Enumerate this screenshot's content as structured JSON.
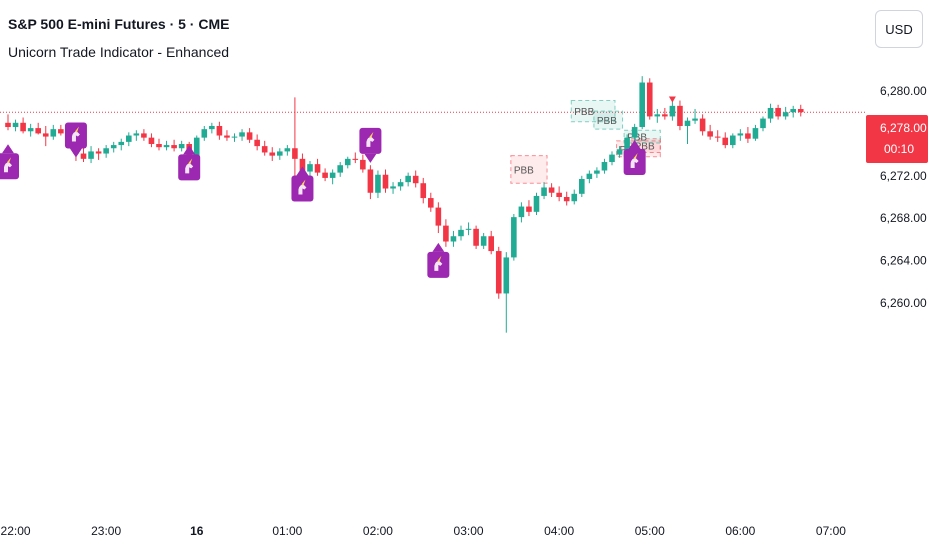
{
  "header": {
    "title": "S&P 500 E-mini Futures · 5 · CME",
    "indicator": "Unicorn Trade Indicator - Enhanced",
    "currency": "USD"
  },
  "price_tag": {
    "price": "6,278.00",
    "countdown": "00:10"
  },
  "colors": {
    "up": "#22ab94",
    "down": "#f23645",
    "marker": "#9c27b0",
    "price_line": "#f23645",
    "axis_text": "#131722"
  },
  "icons": {
    "marker": "unicorn-icon"
  },
  "chart_data": {
    "type": "candlestick",
    "y_ticks": [
      "6,280.00",
      "6,276.00",
      "6,272.00",
      "6,268.00",
      "6,264.00",
      "6,260.00"
    ],
    "y_tick_values": [
      6280,
      6276,
      6272,
      6268,
      6264,
      6260
    ],
    "ylim": [
      6256.3,
      6283.0
    ],
    "x_ticks": [
      {
        "label": "22:00",
        "bar": 1,
        "bold": false
      },
      {
        "label": "23:00",
        "bar": 13,
        "bold": false
      },
      {
        "label": "16",
        "bar": 25,
        "bold": true
      },
      {
        "label": "01:00",
        "bar": 37,
        "bold": false
      },
      {
        "label": "02:00",
        "bar": 49,
        "bold": false
      },
      {
        "label": "03:00",
        "bar": 61,
        "bold": false
      },
      {
        "label": "04:00",
        "bar": 73,
        "bold": false
      },
      {
        "label": "05:00",
        "bar": 85,
        "bold": false
      },
      {
        "label": "06:00",
        "bar": 97,
        "bold": false
      },
      {
        "label": "07:00",
        "bar": 109,
        "bold": false
      }
    ],
    "current_price": 6278.0,
    "candles": [
      [
        6277.0,
        6277.8,
        6276.3,
        6276.6
      ],
      [
        6276.6,
        6277.3,
        6276.2,
        6277.0
      ],
      [
        6277.0,
        6277.5,
        6276.0,
        6276.2
      ],
      [
        6276.2,
        6276.9,
        6275.7,
        6276.5
      ],
      [
        6276.5,
        6277.0,
        6275.9,
        6276.0
      ],
      [
        6276.0,
        6276.7,
        6274.8,
        6275.7
      ],
      [
        6275.7,
        6276.8,
        6275.4,
        6276.4
      ],
      [
        6276.4,
        6276.8,
        6275.8,
        6276.0
      ],
      [
        6276.0,
        6276.5,
        6274.9,
        6275.2
      ],
      [
        6275.2,
        6275.7,
        6273.4,
        6274.1
      ],
      [
        6274.1,
        6274.6,
        6273.3,
        6273.6
      ],
      [
        6273.6,
        6274.8,
        6273.2,
        6274.3
      ],
      [
        6274.3,
        6274.6,
        6273.5,
        6274.1
      ],
      [
        6274.1,
        6274.9,
        6273.7,
        6274.6
      ],
      [
        6274.6,
        6275.2,
        6274.2,
        6274.9
      ],
      [
        6274.9,
        6275.5,
        6274.4,
        6275.2
      ],
      [
        6275.2,
        6276.1,
        6274.8,
        6275.8
      ],
      [
        6275.8,
        6276.3,
        6275.3,
        6276.0
      ],
      [
        6276.0,
        6276.4,
        6275.3,
        6275.6
      ],
      [
        6275.6,
        6276.0,
        6274.7,
        6275.0
      ],
      [
        6275.0,
        6275.5,
        6274.4,
        6274.7
      ],
      [
        6274.7,
        6275.3,
        6274.4,
        6274.9
      ],
      [
        6274.9,
        6275.4,
        6274.3,
        6274.6
      ],
      [
        6274.6,
        6275.3,
        6274.3,
        6275.0
      ],
      [
        6275.0,
        6275.2,
        6272.8,
        6273.1
      ],
      [
        6273.1,
        6275.8,
        6272.9,
        6275.6
      ],
      [
        6275.6,
        6276.7,
        6275.3,
        6276.4
      ],
      [
        6276.4,
        6277.0,
        6276.0,
        6276.7
      ],
      [
        6276.7,
        6277.1,
        6275.4,
        6275.8
      ],
      [
        6275.8,
        6276.3,
        6275.3,
        6275.6
      ],
      [
        6275.6,
        6276.0,
        6275.2,
        6275.7
      ],
      [
        6275.7,
        6276.4,
        6275.3,
        6276.1
      ],
      [
        6276.1,
        6276.5,
        6275.1,
        6275.4
      ],
      [
        6275.4,
        6275.9,
        6274.4,
        6274.8
      ],
      [
        6274.8,
        6275.3,
        6273.9,
        6274.2
      ],
      [
        6274.2,
        6274.7,
        6273.4,
        6273.9
      ],
      [
        6273.9,
        6274.6,
        6273.5,
        6274.3
      ],
      [
        6274.3,
        6274.9,
        6273.9,
        6274.6
      ],
      [
        6274.6,
        6279.4,
        6271.2,
        6273.6
      ],
      [
        6273.6,
        6274.1,
        6271.8,
        6272.4
      ],
      [
        6272.4,
        6273.4,
        6272.0,
        6273.1
      ],
      [
        6273.1,
        6273.6,
        6272.0,
        6272.3
      ],
      [
        6272.3,
        6272.7,
        6271.5,
        6271.8
      ],
      [
        6271.8,
        6272.6,
        6271.2,
        6272.3
      ],
      [
        6272.3,
        6273.3,
        6271.9,
        6273.0
      ],
      [
        6273.0,
        6273.8,
        6272.7,
        6273.6
      ],
      [
        6273.6,
        6274.2,
        6273.2,
        6273.5
      ],
      [
        6273.5,
        6274.0,
        6272.3,
        6272.6
      ],
      [
        6272.6,
        6273.0,
        6269.8,
        6270.4
      ],
      [
        6270.4,
        6272.5,
        6269.9,
        6272.1
      ],
      [
        6272.1,
        6272.6,
        6270.4,
        6270.8
      ],
      [
        6270.8,
        6271.4,
        6270.3,
        6271.0
      ],
      [
        6271.0,
        6271.7,
        6270.6,
        6271.4
      ],
      [
        6271.4,
        6272.3,
        6271.0,
        6272.0
      ],
      [
        6272.0,
        6272.5,
        6270.9,
        6271.3
      ],
      [
        6271.3,
        6271.8,
        6269.4,
        6269.9
      ],
      [
        6269.9,
        6270.4,
        6268.6,
        6269.0
      ],
      [
        6269.0,
        6269.5,
        6266.6,
        6267.3
      ],
      [
        6267.3,
        6267.9,
        6265.3,
        6265.8
      ],
      [
        6265.8,
        6266.8,
        6265.3,
        6266.3
      ],
      [
        6266.3,
        6267.3,
        6265.9,
        6266.9
      ],
      [
        6266.9,
        6267.6,
        6266.4,
        6267.0
      ],
      [
        6267.0,
        6267.3,
        6265.1,
        6265.4
      ],
      [
        6265.4,
        6266.6,
        6265.1,
        6266.3
      ],
      [
        6266.3,
        6266.8,
        6264.6,
        6264.9
      ],
      [
        6264.9,
        6265.3,
        6260.4,
        6260.9
      ],
      [
        6260.9,
        6264.8,
        6257.2,
        6264.3
      ],
      [
        6264.3,
        6268.4,
        6264.0,
        6268.1
      ],
      [
        6268.1,
        6269.5,
        6267.6,
        6269.1
      ],
      [
        6269.1,
        6269.7,
        6268.2,
        6268.6
      ],
      [
        6268.6,
        6270.4,
        6268.3,
        6270.1
      ],
      [
        6270.1,
        6271.4,
        6269.8,
        6270.9
      ],
      [
        6270.9,
        6271.3,
        6270.0,
        6270.4
      ],
      [
        6270.4,
        6271.0,
        6269.6,
        6270.0
      ],
      [
        6270.0,
        6270.5,
        6269.2,
        6269.6
      ],
      [
        6269.6,
        6270.7,
        6269.3,
        6270.3
      ],
      [
        6270.3,
        6272.0,
        6270.0,
        6271.7
      ],
      [
        6271.7,
        6272.5,
        6271.3,
        6272.2
      ],
      [
        6272.2,
        6272.8,
        6271.8,
        6272.5
      ],
      [
        6272.5,
        6273.6,
        6272.2,
        6273.3
      ],
      [
        6273.3,
        6274.3,
        6273.0,
        6274.0
      ],
      [
        6274.0,
        6274.8,
        6273.7,
        6274.5
      ],
      [
        6274.5,
        6275.9,
        6274.2,
        6275.6
      ],
      [
        6275.6,
        6276.9,
        6275.2,
        6276.6
      ],
      [
        6276.6,
        6281.4,
        6276.4,
        6280.8
      ],
      [
        6280.8,
        6281.2,
        6277.3,
        6277.6
      ],
      [
        6277.6,
        6278.3,
        6277.0,
        6277.8
      ],
      [
        6277.8,
        6278.4,
        6277.3,
        6277.6
      ],
      [
        6277.6,
        6279.0,
        6277.2,
        6278.6
      ],
      [
        6278.6,
        6279.1,
        6276.3,
        6276.7
      ],
      [
        6276.7,
        6277.5,
        6275.0,
        6277.2
      ],
      [
        6277.2,
        6278.3,
        6276.9,
        6277.4
      ],
      [
        6277.4,
        6277.8,
        6275.8,
        6276.2
      ],
      [
        6276.2,
        6276.8,
        6275.4,
        6275.7
      ],
      [
        6275.7,
        6276.3,
        6275.2,
        6275.6
      ],
      [
        6275.6,
        6276.1,
        6274.6,
        6274.9
      ],
      [
        6274.9,
        6276.0,
        6274.6,
        6275.8
      ],
      [
        6275.8,
        6276.4,
        6275.3,
        6276.0
      ],
      [
        6276.0,
        6276.6,
        6275.1,
        6275.5
      ],
      [
        6275.5,
        6276.8,
        6275.3,
        6276.5
      ],
      [
        6276.5,
        6277.6,
        6276.2,
        6277.4
      ],
      [
        6277.4,
        6278.8,
        6277.0,
        6278.4
      ],
      [
        6278.4,
        6278.7,
        6277.3,
        6277.6
      ],
      [
        6277.6,
        6278.5,
        6277.3,
        6278.0
      ],
      [
        6278.0,
        6278.6,
        6277.5,
        6278.3
      ],
      [
        6278.3,
        6278.7,
        6277.6,
        6278.0
      ]
    ],
    "marker_points": [
      {
        "bar": 0,
        "price": 6272.9,
        "dir": "up"
      },
      {
        "bar": 9,
        "price": 6275.8,
        "dir": "down"
      },
      {
        "bar": 24,
        "price": 6272.8,
        "dir": "up"
      },
      {
        "bar": 39,
        "price": 6270.8,
        "dir": "up"
      },
      {
        "bar": 48,
        "price": 6275.3,
        "dir": "down"
      },
      {
        "bar": 57,
        "price": 6263.6,
        "dir": "up"
      },
      {
        "bar": 83,
        "price": 6273.3,
        "dir": "up"
      }
    ],
    "zones": [
      {
        "label": "PBB",
        "bars": [
          67,
          71
        ],
        "top": 6273.9,
        "bottom": 6271.3,
        "color": "red"
      },
      {
        "label": "PBB",
        "bars": [
          75,
          80
        ],
        "top": 6279.1,
        "bottom": 6277.1,
        "color": "green"
      },
      {
        "label": "PBB",
        "bars": [
          78,
          81
        ],
        "top": 6278.1,
        "bottom": 6276.4,
        "color": "green"
      },
      {
        "label": "PBB",
        "bars": [
          81,
          86
        ],
        "top": 6275.3,
        "bottom": 6273.8,
        "color": "red"
      },
      {
        "label": "PBB",
        "bars": [
          83,
          86
        ],
        "top": 6275.5,
        "bottom": 6274.2,
        "color": "red"
      },
      {
        "label": "PBB",
        "bars": [
          82,
          86
        ],
        "top": 6276.3,
        "bottom": 6275.1,
        "color": "green"
      }
    ],
    "sell_arrow": {
      "bar": 88,
      "price": 6279.2
    }
  }
}
